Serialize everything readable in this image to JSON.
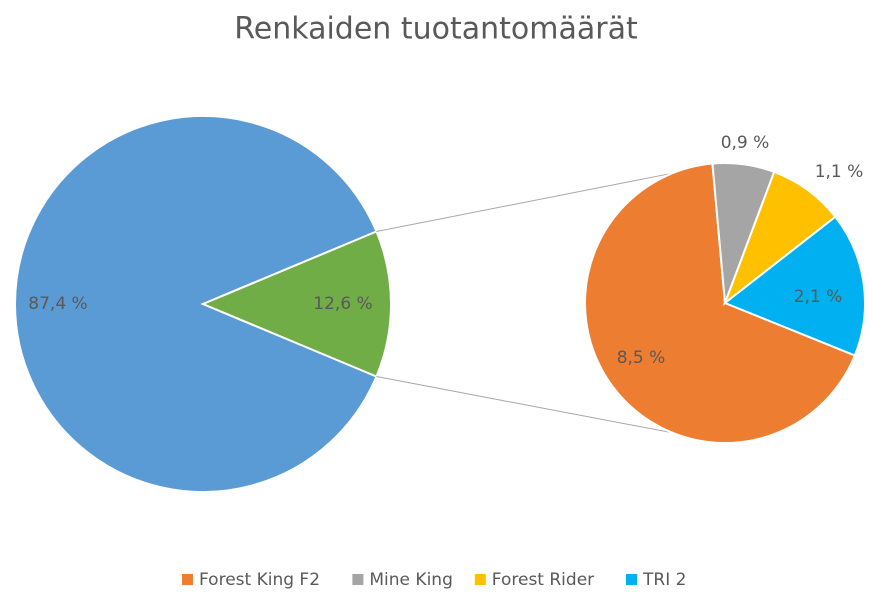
{
  "chart_data": {
    "type": "pie-of-pie",
    "title": "Renkaiden tuotantomäärät",
    "primary": {
      "values": [
        87.4,
        12.6
      ],
      "value_labels": [
        "87,4 %",
        "12,6 %"
      ],
      "colors": [
        "#5b9bd5",
        "#70ad47"
      ]
    },
    "secondary": {
      "categories": [
        "Forest King F2",
        "Mine King",
        "Forest Rider",
        "TRI 2"
      ],
      "values": [
        8.5,
        0.9,
        1.1,
        2.1
      ],
      "value_labels": [
        "8,5 %",
        "0,9 %",
        "1,1 %",
        "2,1 %"
      ],
      "colors": [
        "#ed7d31",
        "#a5a5a5",
        "#ffc000",
        "#00b0f0"
      ]
    },
    "legend": "bottom"
  }
}
